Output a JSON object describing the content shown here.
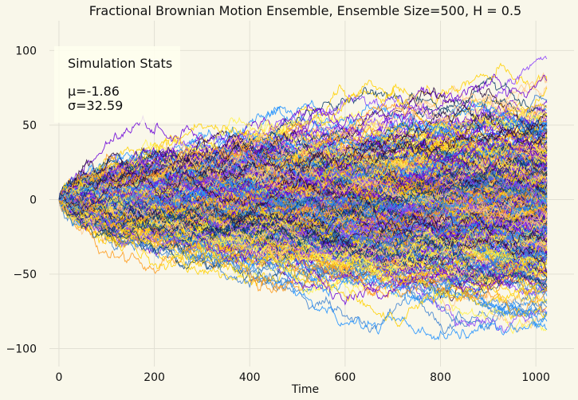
{
  "chart_data": {
    "type": "line",
    "title": "Fractional Brownian Motion Ensemble, Ensemble Size=500, H = 0.5",
    "xlabel": "Time",
    "ylabel": "",
    "xlim": [
      -20,
      1080
    ],
    "ylim": [
      -112,
      120
    ],
    "x_ticks": [
      0,
      200,
      400,
      600,
      800,
      1000
    ],
    "x_tick_labels": [
      "0",
      "200",
      "400",
      "600",
      "800",
      "1000"
    ],
    "y_ticks": [
      -100,
      -50,
      0,
      50,
      100
    ],
    "y_tick_labels": [
      "−100",
      "−50",
      "0",
      "50",
      "100"
    ],
    "grid": true,
    "n_steps": 1024,
    "ensemble_size": 500,
    "hurst": 0.5,
    "final_mean": -1.86,
    "final_std": 32.59,
    "colors": [
      "#6a00d8",
      "#8a3ffc",
      "#ffd000",
      "#fff34d",
      "#ffc68a",
      "#ff9a1a",
      "#1e90ff",
      "#0b3d6b",
      "#2a0a3a",
      "#3a7fd0"
    ],
    "stats_box": {
      "heading": "Simulation Stats",
      "mean_line": "μ=-1.86",
      "std_line": "σ=32.59"
    }
  }
}
